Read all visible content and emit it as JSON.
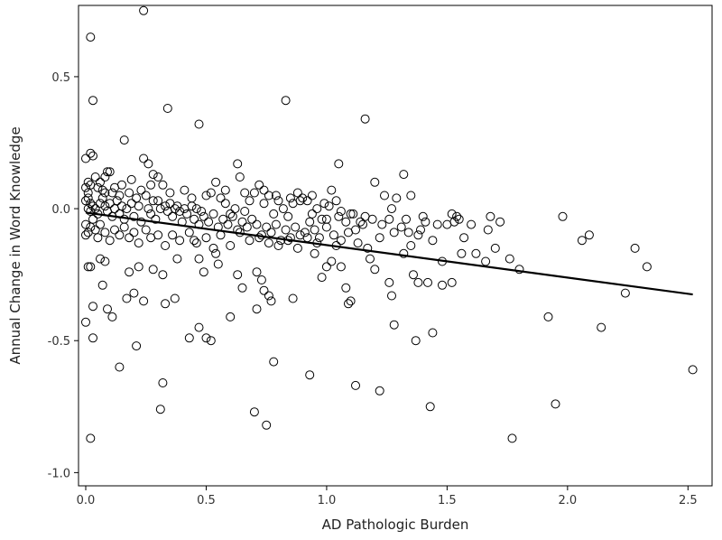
{
  "chart_data": {
    "type": "scatter",
    "title": "",
    "xlabel": "AD Pathologic Burden",
    "ylabel": "Annual Change in Word Knowledge",
    "xlim": [
      -0.03,
      2.6
    ],
    "ylim": [
      -1.05,
      0.77
    ],
    "xticks": [
      0.0,
      0.5,
      1.0,
      1.5,
      2.0,
      2.5
    ],
    "xtick_labels": [
      "0.0",
      "0.5",
      "1.0",
      "1.5",
      "2.0",
      "2.5"
    ],
    "yticks": [
      0.5,
      0.0,
      -0.5,
      -1.0
    ],
    "ytick_labels": [
      "0.5",
      "0.0",
      "-0.5",
      "-1.0"
    ],
    "grid": false,
    "marker": "open-circle",
    "color": "#000000",
    "fit_line": {
      "x": [
        0.0,
        2.52
      ],
      "y": [
        -0.015,
        -0.325
      ]
    },
    "points": [
      [
        0.24,
        0.75
      ],
      [
        0.02,
        0.65
      ],
      [
        0.03,
        0.41
      ],
      [
        0.34,
        0.38
      ],
      [
        0.83,
        0.41
      ],
      [
        0.47,
        0.32
      ],
      [
        1.16,
        0.34
      ],
      [
        0.0,
        0.19
      ],
      [
        0.02,
        0.21
      ],
      [
        0.03,
        0.2
      ],
      [
        0.24,
        0.19
      ],
      [
        0.16,
        0.26
      ],
      [
        0.26,
        0.17
      ],
      [
        0.63,
        0.17
      ],
      [
        1.05,
        0.17
      ],
      [
        0.28,
        0.13
      ],
      [
        0.3,
        0.12
      ],
      [
        0.32,
        0.09
      ],
      [
        0.09,
        0.14
      ],
      [
        0.1,
        0.14
      ],
      [
        0.04,
        0.12
      ],
      [
        0.01,
        0.1
      ],
      [
        0.02,
        0.09
      ],
      [
        0.05,
        0.08
      ],
      [
        0.07,
        0.07
      ],
      [
        0.08,
        0.06
      ],
      [
        0.12,
        0.08
      ],
      [
        0.14,
        0.05
      ],
      [
        0.18,
        0.06
      ],
      [
        0.21,
        0.04
      ],
      [
        0.25,
        0.05
      ],
      [
        0.28,
        0.03
      ],
      [
        0.3,
        0.03
      ],
      [
        0.33,
        0.01
      ],
      [
        0.35,
        0.02
      ],
      [
        0.37,
        0.0
      ],
      [
        0.39,
        -0.01
      ],
      [
        0.41,
        0.0
      ],
      [
        0.44,
        0.01
      ],
      [
        0.46,
        0.0
      ],
      [
        0.48,
        -0.01
      ],
      [
        0.5,
        0.05
      ],
      [
        0.52,
        0.06
      ],
      [
        0.54,
        0.1
      ],
      [
        0.56,
        0.04
      ],
      [
        0.58,
        0.02
      ],
      [
        0.6,
        -0.02
      ],
      [
        0.62,
        0.0
      ],
      [
        0.64,
        0.12
      ],
      [
        0.66,
        -0.01
      ],
      [
        0.68,
        0.03
      ],
      [
        0.7,
        0.06
      ],
      [
        0.72,
        0.09
      ],
      [
        0.74,
        0.02
      ],
      [
        0.76,
        0.05
      ],
      [
        0.78,
        -0.02
      ],
      [
        0.8,
        0.03
      ],
      [
        0.82,
        0.0
      ],
      [
        0.84,
        -0.03
      ],
      [
        0.86,
        0.02
      ],
      [
        0.88,
        0.06
      ],
      [
        0.9,
        0.04
      ],
      [
        0.92,
        0.03
      ],
      [
        0.94,
        -0.02
      ],
      [
        0.96,
        0.0
      ],
      [
        0.98,
        -0.04
      ],
      [
        1.0,
        -0.04
      ],
      [
        1.02,
        0.07
      ],
      [
        1.04,
        0.03
      ],
      [
        1.06,
        -0.01
      ],
      [
        1.08,
        -0.05
      ],
      [
        1.1,
        -0.02
      ],
      [
        1.12,
        -0.08
      ],
      [
        1.14,
        -0.05
      ],
      [
        1.16,
        -0.03
      ],
      [
        1.2,
        0.1
      ],
      [
        1.24,
        0.05
      ],
      [
        1.26,
        -0.04
      ],
      [
        1.29,
        0.04
      ],
      [
        1.32,
        0.13
      ],
      [
        1.35,
        0.05
      ],
      [
        1.38,
        -0.1
      ],
      [
        1.4,
        -0.03
      ],
      [
        1.44,
        -0.12
      ],
      [
        1.48,
        -0.2
      ],
      [
        1.5,
        -0.06
      ],
      [
        1.52,
        -0.02
      ],
      [
        1.54,
        -0.03
      ],
      [
        1.56,
        -0.17
      ],
      [
        1.6,
        -0.06
      ],
      [
        1.68,
        -0.03
      ],
      [
        1.7,
        -0.15
      ],
      [
        1.72,
        -0.05
      ],
      [
        1.76,
        -0.19
      ],
      [
        1.8,
        -0.23
      ],
      [
        1.98,
        -0.03
      ],
      [
        2.09,
        -0.1
      ],
      [
        2.06,
        -0.12
      ],
      [
        2.28,
        -0.15
      ],
      [
        2.33,
        -0.22
      ],
      [
        2.24,
        -0.32
      ],
      [
        1.92,
        -0.41
      ],
      [
        2.14,
        -0.45
      ],
      [
        1.95,
        -0.74
      ],
      [
        1.77,
        -0.87
      ],
      [
        2.52,
        -0.61
      ],
      [
        0.0,
        -0.43
      ],
      [
        0.01,
        -0.22
      ],
      [
        0.02,
        -0.22
      ],
      [
        0.03,
        -0.37
      ],
      [
        0.03,
        -0.49
      ],
      [
        0.02,
        -0.87
      ],
      [
        0.06,
        -0.19
      ],
      [
        0.08,
        -0.2
      ],
      [
        0.07,
        -0.29
      ],
      [
        0.09,
        -0.38
      ],
      [
        0.11,
        -0.41
      ],
      [
        0.14,
        -0.6
      ],
      [
        0.17,
        -0.34
      ],
      [
        0.18,
        -0.24
      ],
      [
        0.2,
        -0.32
      ],
      [
        0.21,
        -0.52
      ],
      [
        0.22,
        -0.22
      ],
      [
        0.24,
        -0.35
      ],
      [
        0.28,
        -0.23
      ],
      [
        0.32,
        -0.25
      ],
      [
        0.33,
        -0.36
      ],
      [
        0.32,
        -0.66
      ],
      [
        0.31,
        -0.76
      ],
      [
        0.37,
        -0.34
      ],
      [
        0.38,
        -0.19
      ],
      [
        0.43,
        -0.49
      ],
      [
        0.45,
        -0.12
      ],
      [
        0.47,
        -0.45
      ],
      [
        0.47,
        -0.19
      ],
      [
        0.49,
        -0.24
      ],
      [
        0.5,
        -0.49
      ],
      [
        0.52,
        -0.5
      ],
      [
        0.54,
        -0.17
      ],
      [
        0.55,
        -0.21
      ],
      [
        0.6,
        -0.41
      ],
      [
        0.63,
        -0.25
      ],
      [
        0.65,
        -0.3
      ],
      [
        0.71,
        -0.24
      ],
      [
        0.71,
        -0.38
      ],
      [
        0.73,
        -0.27
      ],
      [
        0.74,
        -0.31
      ],
      [
        0.76,
        -0.33
      ],
      [
        0.77,
        -0.35
      ],
      [
        0.78,
        -0.58
      ],
      [
        0.75,
        -0.82
      ],
      [
        0.7,
        -0.77
      ],
      [
        0.86,
        -0.34
      ],
      [
        0.93,
        -0.63
      ],
      [
        0.95,
        -0.17
      ],
      [
        0.98,
        -0.26
      ],
      [
        1.0,
        -0.22
      ],
      [
        1.02,
        -0.2
      ],
      [
        1.04,
        -0.14
      ],
      [
        1.06,
        -0.22
      ],
      [
        1.08,
        -0.3
      ],
      [
        1.09,
        -0.36
      ],
      [
        1.1,
        -0.35
      ],
      [
        1.12,
        -0.67
      ],
      [
        1.18,
        -0.19
      ],
      [
        1.2,
        -0.23
      ],
      [
        1.22,
        -0.69
      ],
      [
        1.26,
        -0.28
      ],
      [
        1.27,
        -0.33
      ],
      [
        1.28,
        -0.44
      ],
      [
        1.32,
        -0.17
      ],
      [
        1.36,
        -0.25
      ],
      [
        1.37,
        -0.5
      ],
      [
        1.38,
        -0.28
      ],
      [
        1.42,
        -0.28
      ],
      [
        1.43,
        -0.75
      ],
      [
        1.44,
        -0.47
      ],
      [
        1.48,
        -0.29
      ],
      [
        1.52,
        -0.28
      ],
      [
        1.62,
        -0.17
      ],
      [
        1.66,
        -0.2
      ],
      [
        0.0,
        0.08
      ],
      [
        0.01,
        0.06
      ],
      [
        0.01,
        0.04
      ],
      [
        0.0,
        0.03
      ],
      [
        0.02,
        0.02
      ],
      [
        0.03,
        0.01
      ],
      [
        0.01,
        0.0
      ],
      [
        0.02,
        -0.01
      ],
      [
        0.04,
        0.0
      ],
      [
        0.05,
        -0.02
      ],
      [
        0.06,
        0.02
      ],
      [
        0.07,
        0.04
      ],
      [
        0.08,
        0.01
      ],
      [
        0.09,
        -0.01
      ],
      [
        0.1,
        0.02
      ],
      [
        0.11,
        -0.03
      ],
      [
        0.12,
        0.0
      ],
      [
        0.13,
        0.03
      ],
      [
        0.14,
        -0.02
      ],
      [
        0.15,
        0.01
      ],
      [
        0.16,
        -0.04
      ],
      [
        0.17,
        0.0
      ],
      [
        0.19,
        0.02
      ],
      [
        0.2,
        -0.03
      ],
      [
        0.22,
        0.01
      ],
      [
        0.23,
        -0.05
      ],
      [
        0.26,
        0.0
      ],
      [
        0.27,
        -0.02
      ],
      [
        0.29,
        -0.04
      ],
      [
        0.31,
        0.0
      ],
      [
        0.34,
        -0.01
      ],
      [
        0.36,
        -0.03
      ],
      [
        0.38,
        0.01
      ],
      [
        0.4,
        -0.05
      ],
      [
        0.42,
        -0.02
      ],
      [
        0.45,
        -0.04
      ],
      [
        0.47,
        -0.06
      ],
      [
        0.49,
        -0.03
      ],
      [
        0.51,
        -0.05
      ],
      [
        0.53,
        -0.02
      ],
      [
        0.55,
        -0.07
      ],
      [
        0.57,
        -0.04
      ],
      [
        0.59,
        -0.06
      ],
      [
        0.61,
        -0.03
      ],
      [
        0.63,
        -0.08
      ],
      [
        0.65,
        -0.05
      ],
      [
        0.67,
        -0.07
      ],
      [
        0.69,
        -0.04
      ],
      [
        0.71,
        -0.06
      ],
      [
        0.73,
        -0.1
      ],
      [
        0.75,
        -0.07
      ],
      [
        0.77,
        -0.09
      ],
      [
        0.79,
        -0.06
      ],
      [
        0.81,
        -0.12
      ],
      [
        0.83,
        -0.08
      ],
      [
        0.85,
        -0.11
      ],
      [
        0.87,
        -0.07
      ],
      [
        0.89,
        -0.1
      ],
      [
        0.91,
        -0.09
      ],
      [
        0.93,
        -0.05
      ],
      [
        0.95,
        -0.08
      ],
      [
        0.97,
        -0.11
      ],
      [
        1.0,
        -0.07
      ],
      [
        1.03,
        -0.1
      ],
      [
        1.06,
        -0.12
      ],
      [
        1.09,
        -0.09
      ],
      [
        1.13,
        -0.13
      ],
      [
        1.17,
        -0.15
      ],
      [
        1.22,
        -0.11
      ],
      [
        1.28,
        -0.09
      ],
      [
        1.31,
        -0.07
      ],
      [
        1.34,
        -0.09
      ],
      [
        1.46,
        -0.06
      ],
      [
        1.55,
        -0.04
      ],
      [
        0.0,
        -0.06
      ],
      [
        0.01,
        -0.09
      ],
      [
        0.0,
        -0.1
      ],
      [
        0.02,
        -0.07
      ],
      [
        0.03,
        -0.04
      ],
      [
        0.04,
        -0.08
      ],
      [
        0.05,
        -0.11
      ],
      [
        0.06,
        -0.06
      ],
      [
        0.08,
        -0.09
      ],
      [
        0.1,
        -0.12
      ],
      [
        0.12,
        -0.08
      ],
      [
        0.14,
        -0.1
      ],
      [
        0.16,
        -0.07
      ],
      [
        0.18,
        -0.11
      ],
      [
        0.2,
        -0.09
      ],
      [
        0.22,
        -0.13
      ],
      [
        0.25,
        -0.08
      ],
      [
        0.27,
        -0.11
      ],
      [
        0.3,
        -0.1
      ],
      [
        0.33,
        -0.14
      ],
      [
        0.36,
        -0.1
      ],
      [
        0.39,
        -0.12
      ],
      [
        0.43,
        -0.09
      ],
      [
        0.46,
        -0.13
      ],
      [
        0.5,
        -0.11
      ],
      [
        0.53,
        -0.15
      ],
      [
        0.56,
        -0.1
      ],
      [
        0.6,
        -0.14
      ],
      [
        0.64,
        -0.09
      ],
      [
        0.68,
        -0.12
      ],
      [
        0.72,
        -0.11
      ],
      [
        0.76,
        -0.13
      ],
      [
        0.8,
        -0.14
      ],
      [
        0.84,
        -0.12
      ],
      [
        0.88,
        -0.15
      ],
      [
        0.92,
        -0.11
      ],
      [
        0.96,
        -0.13
      ],
      [
        0.06,
        0.1
      ],
      [
        0.08,
        0.12
      ],
      [
        0.11,
        0.06
      ],
      [
        0.15,
        0.09
      ],
      [
        0.19,
        0.11
      ],
      [
        0.23,
        0.07
      ],
      [
        0.27,
        0.09
      ],
      [
        0.35,
        0.06
      ],
      [
        0.41,
        0.07
      ],
      [
        0.44,
        0.04
      ],
      [
        0.58,
        0.07
      ],
      [
        0.66,
        0.06
      ],
      [
        0.74,
        0.07
      ],
      [
        0.79,
        0.05
      ],
      [
        0.85,
        0.04
      ],
      [
        0.89,
        0.03
      ],
      [
        0.94,
        0.05
      ],
      [
        0.99,
        0.02
      ],
      [
        1.01,
        0.01
      ],
      [
        1.05,
        -0.03
      ],
      [
        1.11,
        -0.02
      ],
      [
        1.15,
        -0.06
      ],
      [
        1.19,
        -0.04
      ],
      [
        1.23,
        -0.06
      ],
      [
        1.27,
        0.0
      ],
      [
        1.33,
        -0.04
      ],
      [
        1.39,
        -0.08
      ],
      [
        1.41,
        -0.05
      ],
      [
        1.53,
        -0.05
      ],
      [
        1.67,
        -0.08
      ],
      [
        1.57,
        -0.11
      ],
      [
        1.35,
        -0.14
      ]
    ]
  }
}
